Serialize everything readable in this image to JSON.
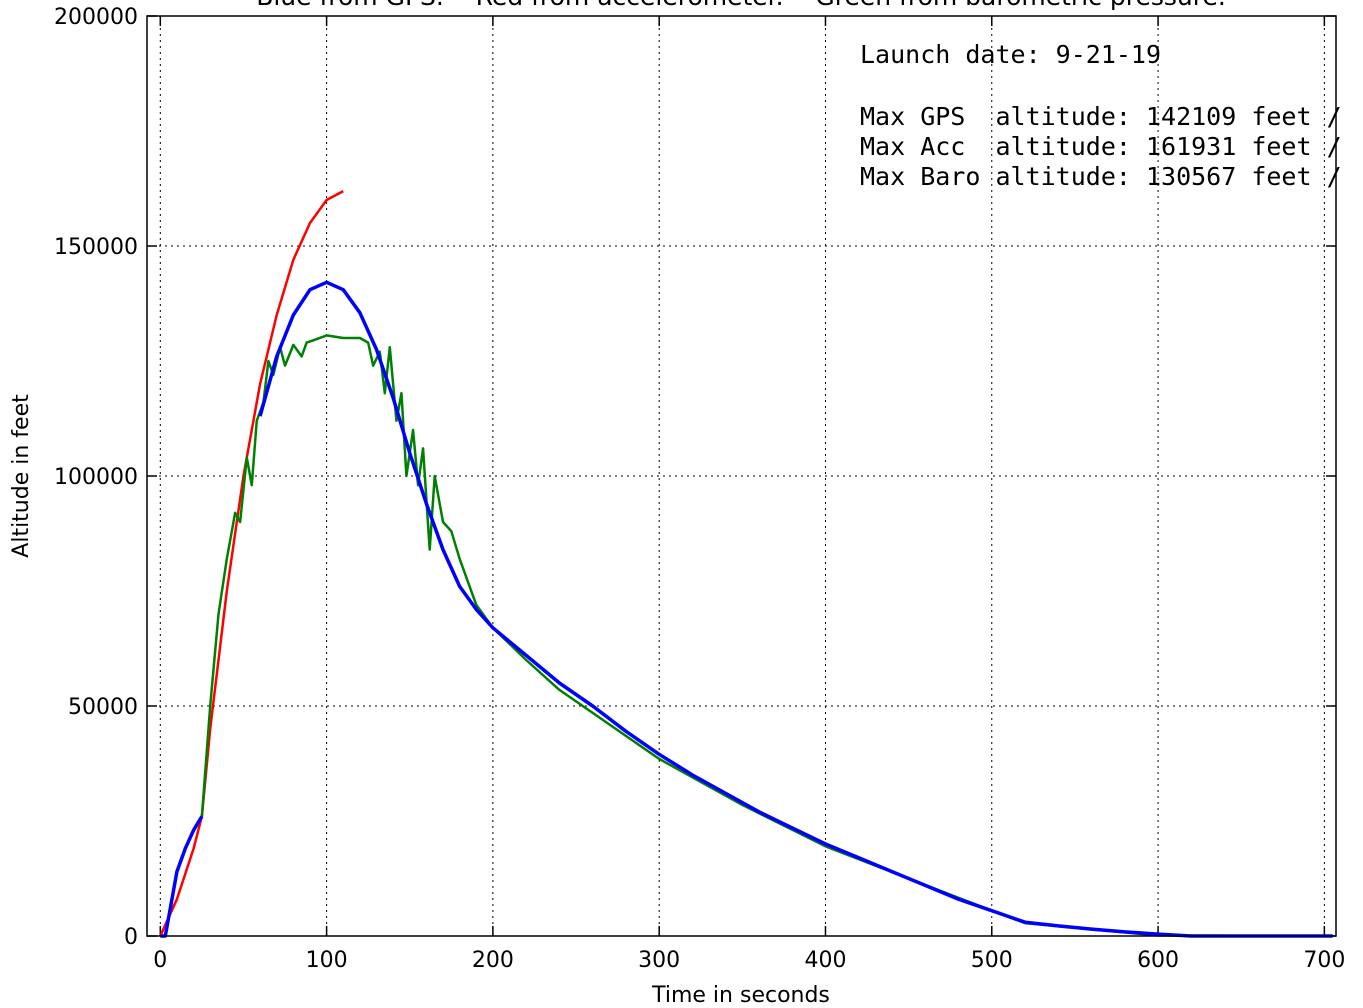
{
  "chart_data": {
    "type": "line",
    "title": "Blue from GPS.    Red from accelerometer.    Green from barometric pressure.",
    "xlabel": "Time in seconds",
    "ylabel": "Altitude in feet",
    "annotations": [
      "Launch date: 9-21-19",
      "Max GPS  altitude: 142109 feet /",
      "Max Acc  altitude: 161931 feet /",
      "Max Baro altitude: 130567 feet /"
    ],
    "xlim": [
      -8,
      707
    ],
    "ylim": [
      0,
      200000
    ],
    "xticks": [
      0,
      100,
      200,
      300,
      400,
      500,
      600,
      700
    ],
    "yticks": [
      0,
      50000,
      100000,
      150000,
      200000
    ],
    "grid": true,
    "series": [
      {
        "name": "Accelerometer",
        "color": "#ff0000",
        "x": [
          0,
          10,
          20,
          25,
          30,
          40,
          50,
          60,
          70,
          80,
          90,
          100,
          110
        ],
        "values": [
          0,
          8000,
          19000,
          26000,
          45000,
          75000,
          100000,
          120000,
          135000,
          147000,
          155000,
          160000,
          161931
        ]
      },
      {
        "name": "Barometric pressure",
        "color": "#008000",
        "x": [
          25,
          30,
          35,
          40,
          45,
          48,
          52,
          55,
          58,
          62,
          65,
          68,
          72,
          75,
          80,
          85,
          88,
          92,
          100,
          110,
          120,
          125,
          128,
          132,
          135,
          138,
          142,
          145,
          148,
          152,
          155,
          158,
          162,
          165,
          170,
          175,
          180,
          190,
          200,
          220,
          240,
          260,
          300,
          350,
          400,
          450,
          500,
          520,
          600,
          705
        ],
        "values": [
          26000,
          50000,
          70000,
          82000,
          92000,
          90000,
          104000,
          98000,
          112000,
          116000,
          125000,
          122000,
          128000,
          124000,
          128500,
          126000,
          129000,
          129500,
          130567,
          130000,
          130000,
          129000,
          124000,
          127000,
          118000,
          128000,
          112000,
          118000,
          100000,
          110000,
          98000,
          106000,
          84000,
          100000,
          90000,
          88000,
          82000,
          72000,
          67000,
          60000,
          53500,
          48500,
          38500,
          28500,
          19500,
          12500,
          5500,
          2800,
          100,
          0
        ]
      },
      {
        "name": "GPS",
        "color": "#0000ff",
        "x": [
          0,
          3,
          6,
          10,
          15,
          20,
          25,
          42,
          60,
          70,
          80,
          90,
          100,
          110,
          120,
          130,
          140,
          150,
          160,
          170,
          180,
          190,
          200,
          220,
          240,
          260,
          280,
          300,
          320,
          340,
          360,
          380,
          400,
          420,
          440,
          460,
          480,
          500,
          520,
          540,
          560,
          580,
          600,
          620,
          650,
          680,
          705
        ],
        "values": [
          0,
          0,
          6000,
          14000,
          19000,
          23000,
          26000,
          null,
          113000,
          126000,
          135000,
          140500,
          142109,
          140500,
          135500,
          127500,
          117000,
          105000,
          94000,
          84000,
          76000,
          71000,
          67000,
          61000,
          55000,
          50000,
          44500,
          39500,
          35000,
          31000,
          27000,
          23500,
          20000,
          17000,
          14000,
          11000,
          8000,
          5500,
          3000,
          2200,
          1500,
          900,
          400,
          0,
          0,
          0,
          0
        ]
      }
    ]
  }
}
